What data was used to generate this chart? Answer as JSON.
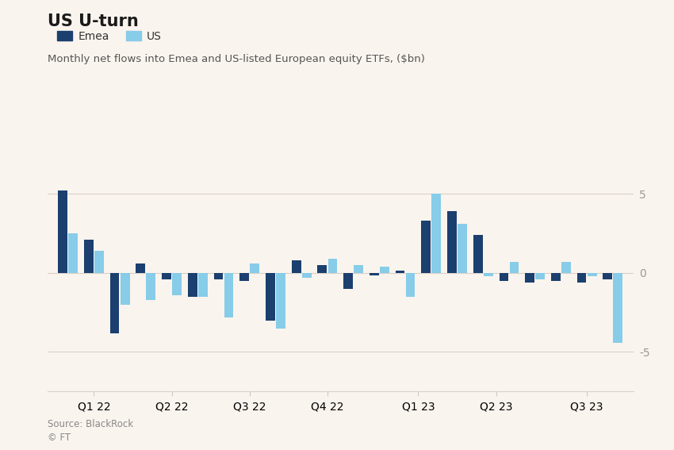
{
  "title": "US U-turn",
  "subtitle": "Monthly net flows into Emea and US-listed European equity ETFs, ($bn)",
  "source_line1": "Source: BlackRock",
  "source_line2": "© FT",
  "color_emea": "#1b3f6e",
  "color_us": "#87cce8",
  "background_color": "#faf4ee",
  "grid_color": "#d9d0c8",
  "months": [
    1,
    2,
    3,
    4,
    5,
    6,
    7,
    8,
    9,
    10,
    11,
    12,
    13,
    14,
    15,
    16,
    17,
    18,
    19,
    20,
    21,
    22
  ],
  "emea_values": [
    5.2,
    2.1,
    -3.8,
    0.6,
    -0.4,
    -1.5,
    -0.4,
    -0.5,
    -3.0,
    0.8,
    0.5,
    -1.0,
    -0.15,
    0.15,
    3.3,
    3.9,
    2.4,
    -0.5,
    -0.6,
    -0.5,
    -0.6,
    -0.4
  ],
  "us_values": [
    2.5,
    1.4,
    -2.0,
    -1.7,
    -1.4,
    -1.5,
    -2.8,
    0.6,
    -3.5,
    -0.3,
    0.9,
    0.5,
    0.4,
    -1.5,
    5.0,
    3.1,
    -0.2,
    0.7,
    -0.4,
    0.7,
    -0.2,
    -4.4
  ],
  "quarter_ticks": [
    2,
    5,
    8,
    11,
    14.5,
    17.5,
    21
  ],
  "quarter_labels": [
    "Q1 22",
    "Q2 22",
    "Q3 22",
    "Q4 22",
    "Q1 23",
    "Q2 23",
    "Q3 23"
  ],
  "ylim": [
    -7.5,
    9.0
  ],
  "yticks": [
    -5,
    0,
    5
  ]
}
